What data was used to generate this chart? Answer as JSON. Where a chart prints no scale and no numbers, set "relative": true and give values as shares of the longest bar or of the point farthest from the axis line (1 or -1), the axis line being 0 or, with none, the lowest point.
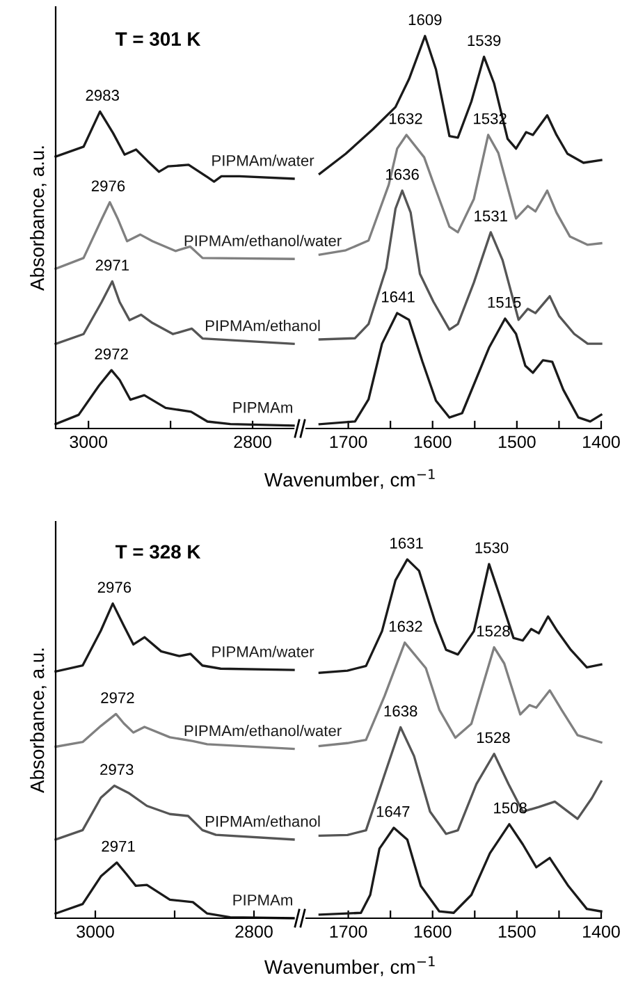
{
  "chart_data": [
    {
      "type": "line",
      "relative": true,
      "title": "T = 301 K",
      "ylabel": "Absorbance, a.u.",
      "xlim": [
        3040,
        2750
      ],
      "xticks": [
        3000,
        {
          "value": 2900,
          "label": null
        },
        2800
      ],
      "tick_labels": "x",
      "series": [
        {
          "name": "PIPMAm/water",
          "color": "#1a1a1a",
          "x": [
            3040,
            3006,
            2986,
            2970,
            2956,
            2942,
            2928,
            2914,
            2903,
            2878,
            2855,
            2847,
            2838,
            2816,
            2750
          ],
          "values": [
            0.858,
            0.889,
            1.0,
            0.932,
            0.864,
            0.88,
            0.844,
            0.81,
            0.827,
            0.832,
            0.793,
            0.779,
            0.796,
            0.796,
            0.788
          ]
        },
        {
          "name": "PIPMAm/ethanol/water",
          "color": "#808080",
          "x": [
            3040,
            3006,
            2984,
            2974,
            2964,
            2953,
            2937,
            2922,
            2894,
            2876,
            2861,
            2750
          ],
          "values": [
            0.504,
            0.538,
            0.66,
            0.714,
            0.66,
            0.591,
            0.612,
            0.591,
            0.56,
            0.574,
            0.538,
            0.535
          ]
        },
        {
          "name": "PIPMAm/ethanol",
          "color": "#555555",
          "x": [
            3040,
            3006,
            2984,
            2971,
            2962,
            2950,
            2936,
            2922,
            2897,
            2874,
            2861,
            2750
          ],
          "values": [
            0.267,
            0.298,
            0.399,
            0.464,
            0.399,
            0.342,
            0.359,
            0.333,
            0.298,
            0.315,
            0.284,
            0.267
          ]
        },
        {
          "name": "PIPMAm",
          "color": "#1a1a1a",
          "x": [
            3040,
            3012,
            2987,
            2972,
            2962,
            2949,
            2932,
            2906,
            2875,
            2855,
            2827,
            2750
          ],
          "values": [
            0.014,
            0.043,
            0.136,
            0.184,
            0.153,
            0.091,
            0.105,
            0.065,
            0.053,
            0.022,
            0.014,
            0.009
          ]
        }
      ],
      "annotations": [
        {
          "text": "2983",
          "x": 2983,
          "y": 1.0
        },
        {
          "text": "2976",
          "x": 2976,
          "y": 0.714
        },
        {
          "text": "2971",
          "x": 2971,
          "y": 0.464
        },
        {
          "text": "2972",
          "x": 2972,
          "y": 0.184
        }
      ]
    },
    {
      "type": "line",
      "relative": true,
      "xlabel": "Wavenumber, cm$^{−1}$",
      "xlim": [
        1750,
        1400
      ],
      "xticks": [
        1700,
        {
          "value": 1650,
          "label": null
        },
        1600,
        {
          "value": 1550,
          "label": null
        },
        1500,
        {
          "value": 1450,
          "label": null
        },
        1400
      ],
      "tick_labels": "x",
      "series": [
        {
          "color": "#1a1a1a",
          "x": [
            1734,
            1703,
            1671,
            1644,
            1628,
            1609,
            1596,
            1580,
            1570,
            1554,
            1539,
            1527,
            1511,
            1501,
            1489,
            1481,
            1464,
            1453,
            1440,
            1421,
            1400
          ],
          "values": [
            0.649,
            0.7,
            0.762,
            0.819,
            0.89,
            1.0,
            0.915,
            0.745,
            0.741,
            0.833,
            0.947,
            0.879,
            0.738,
            0.713,
            0.755,
            0.748,
            0.798,
            0.748,
            0.7,
            0.677,
            0.684
          ]
        },
        {
          "color": "#808080",
          "x": [
            1734,
            1703,
            1676,
            1652,
            1642,
            1631,
            1610,
            1600,
            1580,
            1570,
            1551,
            1534,
            1522,
            1501,
            1487,
            1478,
            1464,
            1453,
            1437,
            1416,
            1400
          ],
          "values": [
            0.443,
            0.454,
            0.479,
            0.621,
            0.713,
            0.748,
            0.691,
            0.631,
            0.514,
            0.5,
            0.585,
            0.748,
            0.702,
            0.535,
            0.567,
            0.553,
            0.606,
            0.55,
            0.489,
            0.468,
            0.472
          ]
        },
        {
          "color": "#555555",
          "x": [
            1734,
            1692,
            1676,
            1655,
            1644,
            1636,
            1626,
            1615,
            1599,
            1580,
            1570,
            1551,
            1531,
            1517,
            1498,
            1487,
            1478,
            1461,
            1450,
            1432,
            1416,
            1400
          ],
          "values": [
            0.227,
            0.23,
            0.266,
            0.408,
            0.56,
            0.606,
            0.55,
            0.394,
            0.323,
            0.252,
            0.266,
            0.372,
            0.5,
            0.429,
            0.277,
            0.305,
            0.294,
            0.337,
            0.287,
            0.241,
            0.216,
            0.216
          ]
        },
        {
          "color": "#1a1a1a",
          "x": [
            1734,
            1692,
            1676,
            1660,
            1642,
            1628,
            1612,
            1596,
            1580,
            1565,
            1533,
            1514,
            1501,
            1490,
            1481,
            1469,
            1458,
            1445,
            1427,
            1413,
            1400
          ],
          "values": [
            0.011,
            0.018,
            0.074,
            0.216,
            0.294,
            0.277,
            0.17,
            0.071,
            0.028,
            0.039,
            0.206,
            0.28,
            0.241,
            0.16,
            0.142,
            0.174,
            0.17,
            0.099,
            0.028,
            0.018,
            0.035
          ]
        }
      ],
      "annotations": [
        {
          "text": "1609",
          "x": 1609,
          "y": 1.0
        },
        {
          "text": "1539",
          "x": 1539,
          "y": 0.947
        },
        {
          "text": "1632",
          "x": 1632,
          "y": 0.748
        },
        {
          "text": "1532",
          "x": 1532,
          "y": 0.748
        },
        {
          "text": "1636",
          "x": 1636,
          "y": 0.606
        },
        {
          "text": "1531",
          "x": 1531,
          "y": 0.5
        },
        {
          "text": "1641",
          "x": 1641,
          "y": 0.294
        },
        {
          "text": "1515",
          "x": 1515,
          "y": 0.28
        }
      ]
    },
    {
      "type": "line",
      "relative": true,
      "title": "T = 328 K",
      "ylabel": "Absorbance, a.u.",
      "xlim": [
        3050,
        2750
      ],
      "xticks": [
        3000,
        {
          "value": 2900,
          "label": null
        },
        2800
      ],
      "tick_labels": "x",
      "series": [
        {
          "name": "PIPMAm/water",
          "color": "#1a1a1a",
          "x": [
            3050,
            3016,
            2993,
            2978,
            2964,
            2952,
            2938,
            2917,
            2894,
            2880,
            2865,
            2842,
            2750
          ],
          "values": [
            0.784,
            0.803,
            0.914,
            1.0,
            0.929,
            0.87,
            0.893,
            0.848,
            0.833,
            0.84,
            0.803,
            0.793,
            0.789
          ]
        },
        {
          "name": "PIPMAm/ethanol/water",
          "color": "#808080",
          "x": [
            3050,
            3016,
            2993,
            2974,
            2964,
            2952,
            2938,
            2906,
            2877,
            2859,
            2750
          ],
          "values": [
            0.545,
            0.56,
            0.611,
            0.649,
            0.619,
            0.59,
            0.608,
            0.575,
            0.563,
            0.553,
            0.538
          ]
        },
        {
          "name": "PIPMAm/ethanol",
          "color": "#555555",
          "x": [
            3050,
            3016,
            2993,
            2976,
            2958,
            2935,
            2906,
            2883,
            2865,
            2848,
            2750
          ],
          "values": [
            0.25,
            0.28,
            0.383,
            0.421,
            0.398,
            0.357,
            0.331,
            0.325,
            0.28,
            0.265,
            0.25
          ]
        },
        {
          "name": "PIPMAm",
          "color": "#1a1a1a",
          "x": [
            3050,
            3016,
            2993,
            2973,
            2961,
            2949,
            2935,
            2906,
            2877,
            2859,
            2830,
            2750
          ],
          "values": [
            0.015,
            0.045,
            0.133,
            0.177,
            0.141,
            0.103,
            0.106,
            0.059,
            0.051,
            0.015,
            0.003,
            0
          ]
        }
      ],
      "annotations": [
        {
          "text": "2976",
          "x": 2976,
          "y": 1.0
        },
        {
          "text": "2972",
          "x": 2972,
          "y": 0.649
        },
        {
          "text": "2973",
          "x": 2973,
          "y": 0.421
        },
        {
          "text": "2971",
          "x": 2971,
          "y": 0.177
        }
      ]
    },
    {
      "type": "line",
      "relative": true,
      "xlabel": "Wavenumber, cm$^{−1}$",
      "xlim": [
        1750,
        1400
      ],
      "xticks": [
        1700,
        {
          "value": 1650,
          "label": null
        },
        1600,
        {
          "value": 1550,
          "label": null
        },
        1500,
        {
          "value": 1450,
          "label": null
        },
        1400
      ],
      "tick_labels": "x",
      "series": [
        {
          "color": "#1a1a1a",
          "x": [
            1734,
            1701,
            1679,
            1660,
            1644,
            1630,
            1616,
            1597,
            1584,
            1570,
            1551,
            1533,
            1521,
            1504,
            1493,
            1483,
            1474,
            1463,
            1452,
            1436,
            1417,
            1400
          ],
          "values": [
            0.684,
            0.69,
            0.703,
            0.8,
            0.942,
            1.0,
            0.968,
            0.826,
            0.748,
            0.735,
            0.8,
            0.987,
            0.903,
            0.781,
            0.774,
            0.806,
            0.794,
            0.841,
            0.8,
            0.748,
            0.699,
            0.707
          ]
        },
        {
          "color": "#808080",
          "x": [
            1734,
            1701,
            1679,
            1657,
            1633,
            1608,
            1592,
            1573,
            1554,
            1527,
            1515,
            1496,
            1485,
            1477,
            1461,
            1447,
            1428,
            1400
          ],
          "values": [
            0.48,
            0.488,
            0.497,
            0.619,
            0.768,
            0.697,
            0.581,
            0.503,
            0.542,
            0.755,
            0.71,
            0.568,
            0.594,
            0.587,
            0.635,
            0.581,
            0.51,
            0.49
          ]
        },
        {
          "color": "#555555",
          "x": [
            1734,
            1701,
            1679,
            1657,
            1638,
            1622,
            1603,
            1584,
            1570,
            1548,
            1527,
            1510,
            1493,
            1474,
            1455,
            1428,
            1411,
            1400
          ],
          "values": [
            0.23,
            0.232,
            0.245,
            0.4,
            0.532,
            0.452,
            0.297,
            0.235,
            0.245,
            0.374,
            0.458,
            0.374,
            0.297,
            0.31,
            0.325,
            0.277,
            0.335,
            0.381
          ]
        },
        {
          "color": "#1a1a1a",
          "x": [
            1734,
            1685,
            1674,
            1663,
            1646,
            1630,
            1614,
            1592,
            1575,
            1554,
            1532,
            1509,
            1493,
            1477,
            1461,
            1439,
            1417,
            1400
          ],
          "values": [
            0.01,
            0.015,
            0.065,
            0.194,
            0.252,
            0.219,
            0.09,
            0.019,
            0.015,
            0.065,
            0.181,
            0.262,
            0.206,
            0.142,
            0.168,
            0.09,
            0.026,
            0.019
          ]
        }
      ],
      "annotations": [
        {
          "text": "1631",
          "x": 1631,
          "y": 1.0
        },
        {
          "text": "1530",
          "x": 1530,
          "y": 0.987
        },
        {
          "text": "1632",
          "x": 1632,
          "y": 0.768
        },
        {
          "text": "1528",
          "x": 1528,
          "y": 0.755
        },
        {
          "text": "1638",
          "x": 1638,
          "y": 0.532
        },
        {
          "text": "1528",
          "x": 1528,
          "y": 0.458
        },
        {
          "text": "1647",
          "x": 1647,
          "y": 0.252
        },
        {
          "text": "1508",
          "x": 1508,
          "y": 0.262
        }
      ]
    }
  ]
}
